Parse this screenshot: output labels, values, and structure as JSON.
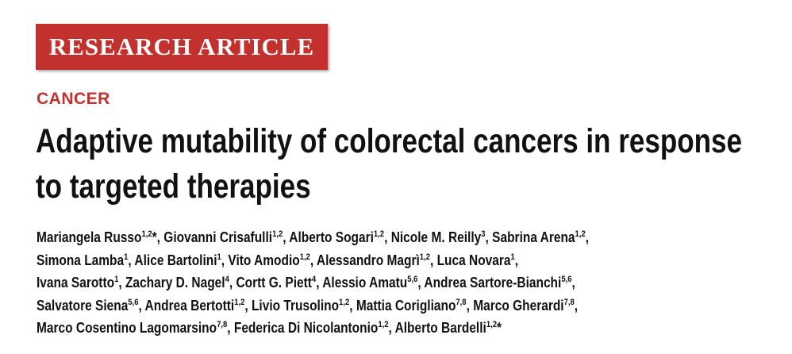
{
  "header": {
    "badge": "RESEARCH ARTICLE",
    "section": "CANCER",
    "title": "Adaptive mutability of colorectal cancers in response to targeted therapies"
  },
  "authors": {
    "separator": ",",
    "lines": [
      [
        {
          "name": "Mariangela Russo",
          "sup": "1,2",
          "mark": "*"
        },
        {
          "name": "Giovanni Crisafulli",
          "sup": "1,2"
        },
        {
          "name": "Alberto Sogari",
          "sup": "1,2"
        },
        {
          "name": "Nicole M. Reilly",
          "sup": "3"
        },
        {
          "name": "Sabrina Arena",
          "sup": "1,2"
        }
      ],
      [
        {
          "name": "Simona Lamba",
          "sup": "1"
        },
        {
          "name": "Alice Bartolini",
          "sup": "1"
        },
        {
          "name": "Vito Amodio",
          "sup": "1,2"
        },
        {
          "name": "Alessandro Magrì",
          "sup": "1,2"
        },
        {
          "name": "Luca Novara",
          "sup": "1"
        }
      ],
      [
        {
          "name": "Ivana Sarotto",
          "sup": "1"
        },
        {
          "name": "Zachary D. Nagel",
          "sup": "4"
        },
        {
          "name": "Cortt G. Piett",
          "sup": "4"
        },
        {
          "name": "Alessio Amatu",
          "sup": "5,6"
        },
        {
          "name": "Andrea Sartore-Bianchi",
          "sup": "5,6"
        }
      ],
      [
        {
          "name": "Salvatore Siena",
          "sup": "5,6"
        },
        {
          "name": "Andrea Bertotti",
          "sup": "1,2"
        },
        {
          "name": "Livio Trusolino",
          "sup": "1,2"
        },
        {
          "name": "Mattia Corigliano",
          "sup": "7,8"
        },
        {
          "name": "Marco Gherardi",
          "sup": "7,8"
        }
      ],
      [
        {
          "name": "Marco Cosentino Lagomarsino",
          "sup": "7,8"
        },
        {
          "name": "Federica Di Nicolantonio",
          "sup": "1,2"
        },
        {
          "name": "Alberto Bardelli",
          "sup": "1,2",
          "mark": "*"
        }
      ]
    ]
  }
}
